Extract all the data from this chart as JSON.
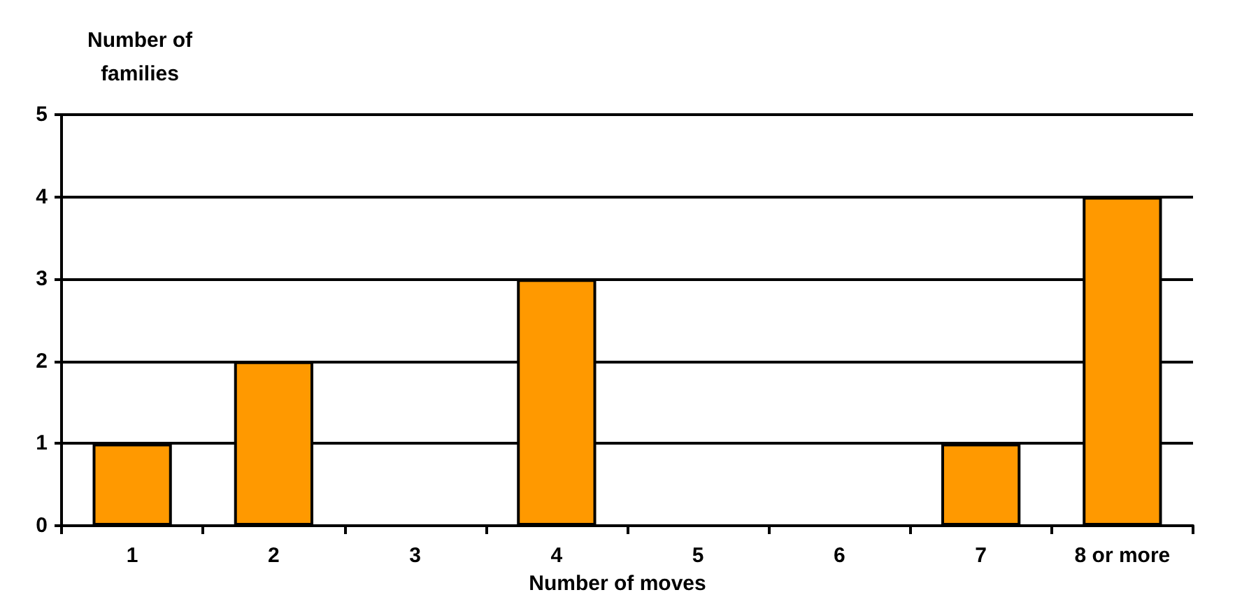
{
  "chart_data": {
    "type": "bar",
    "ylabel": "Number of families",
    "xlabel": "Number of moves",
    "categories": [
      "1",
      "2",
      "3",
      "4",
      "5",
      "6",
      "7",
      "8 or more"
    ],
    "values": [
      1,
      2,
      0,
      3,
      0,
      0,
      1,
      4
    ],
    "color": "#ff9900",
    "ylim": [
      0,
      5
    ],
    "yticks": [
      0,
      1,
      2,
      3,
      4,
      5
    ],
    "grid": "y"
  }
}
